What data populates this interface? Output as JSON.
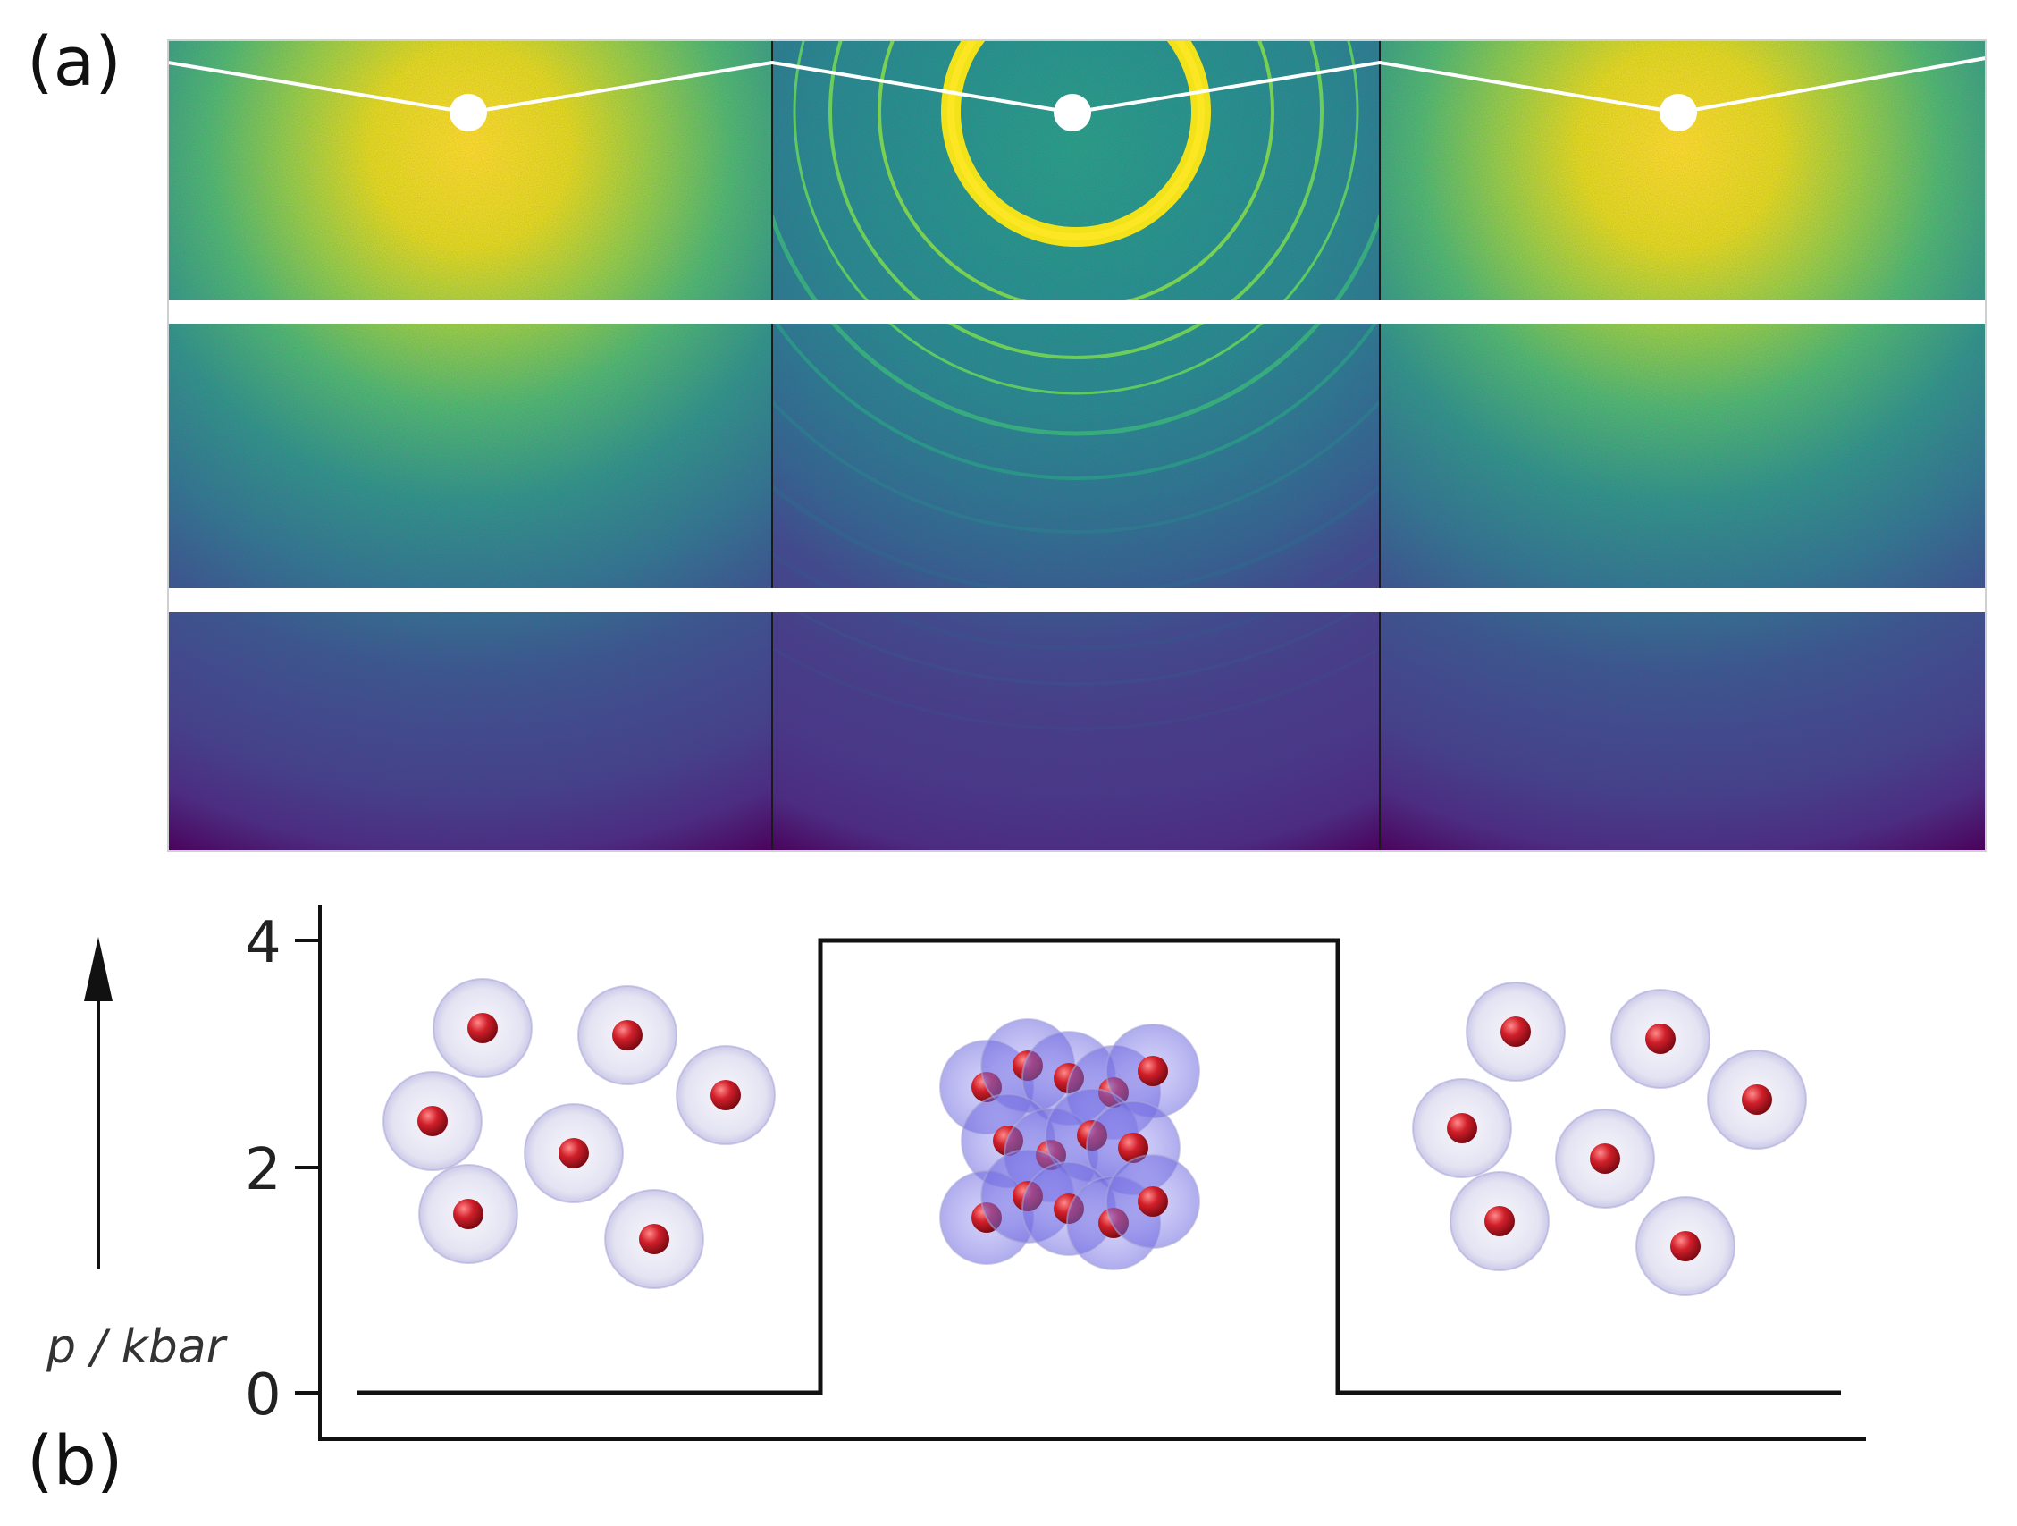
{
  "panel_a": {
    "label": "(a)"
  },
  "panel_b": {
    "label": "(b)"
  },
  "chart_data": {
    "type": "line",
    "title": "",
    "xlabel": "",
    "ylabel": "p / kbar",
    "ylim": [
      0,
      4
    ],
    "yticks": [
      "0",
      "2",
      "4"
    ],
    "series": [
      {
        "values": [
          0,
          0,
          4,
          4,
          0,
          0
        ]
      }
    ],
    "grid": false
  },
  "colors": {
    "viridis_dark": "#440154",
    "viridis_blue": "#31688e",
    "viridis_teal": "#21918c",
    "viridis_green": "#5ec962",
    "viridis_yellow": "#fde725",
    "atom_red": "#d11f2a",
    "shell_lavender": "#c9c7e6",
    "shell_blue": "#7d78e6"
  },
  "icons": {
    "pressure_arrow": "arrow-up-icon",
    "molecule": "water-molecule-icon"
  }
}
